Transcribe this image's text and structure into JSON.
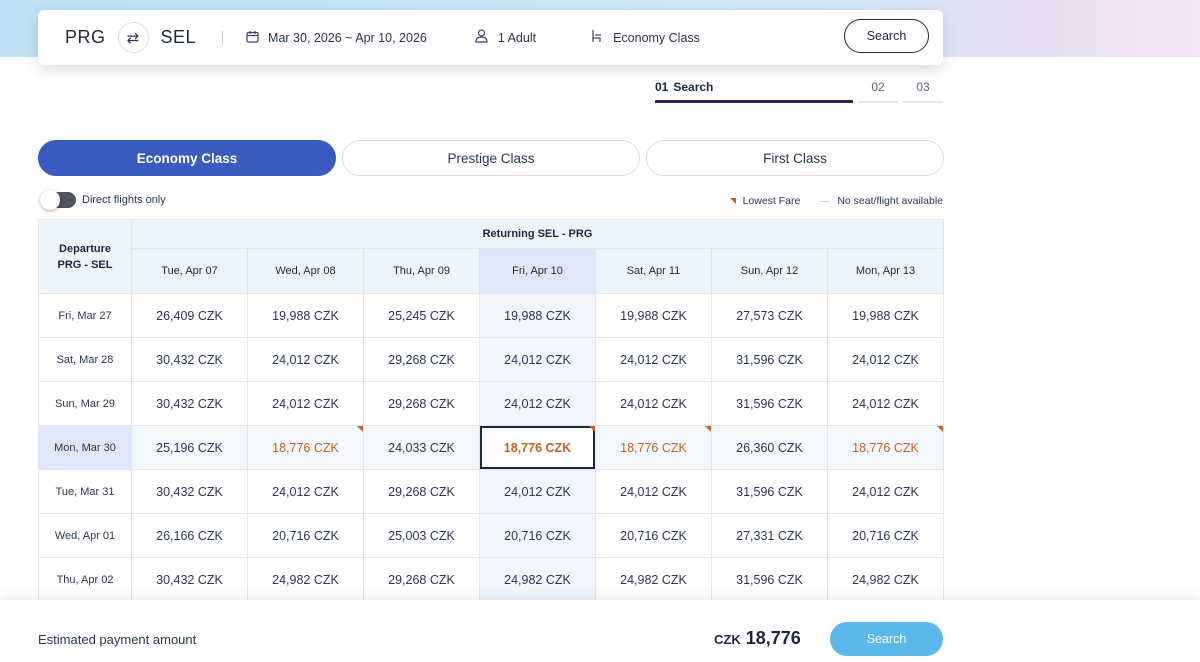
{
  "search_bar": {
    "origin": "PRG",
    "destination": "SEL",
    "dates": "Mar 30, 2026 ~ Apr 10, 2026",
    "passengers": "1 Adult",
    "cabin": "Economy Class",
    "search_label": "Search"
  },
  "icons": {
    "swap": "swap-icon",
    "calendar": "calendar-icon",
    "person": "person-icon",
    "seat": "seat-icon"
  },
  "steps": [
    {
      "num": "01",
      "label": "Search"
    },
    {
      "num": "02",
      "label": ""
    },
    {
      "num": "03",
      "label": ""
    }
  ],
  "class_tabs": [
    "Economy Class",
    "Prestige Class",
    "First Class"
  ],
  "direct_flights_label": "Direct flights only",
  "legend": {
    "lowest_fare": "Lowest Fare",
    "no_seat": "No seat/flight available"
  },
  "table": {
    "returning_header": "Returning SEL - PRG",
    "departure_header_line1": "Departure",
    "departure_header_line2": "PRG - SEL",
    "return_dates": [
      "Tue, Apr 07",
      "Wed, Apr 08",
      "Thu, Apr 09",
      "Fri, Apr 10",
      "Sat, Apr 11",
      "Sun, Apr 12",
      "Mon, Apr 13"
    ],
    "rows": [
      {
        "date": "Fri, Mar 27",
        "fares": [
          "26,409 CZK",
          "19,988 CZK",
          "25,245 CZK",
          "19,988 CZK",
          "19,988 CZK",
          "27,573 CZK",
          "19,988 CZK"
        ]
      },
      {
        "date": "Sat, Mar 28",
        "fares": [
          "30,432 CZK",
          "24,012 CZK",
          "29,268 CZK",
          "24,012 CZK",
          "24,012 CZK",
          "31,596 CZK",
          "24,012 CZK"
        ]
      },
      {
        "date": "Sun, Mar 29",
        "fares": [
          "30,432 CZK",
          "24,012 CZK",
          "29,268 CZK",
          "24,012 CZK",
          "24,012 CZK",
          "31,596 CZK",
          "24,012 CZK"
        ]
      },
      {
        "date": "Mon, Mar 30",
        "fares": [
          "25,196 CZK",
          "18,776 CZK",
          "24,033 CZK",
          "18,776 CZK",
          "18,776 CZK",
          "26,360 CZK",
          "18,776 CZK"
        ]
      },
      {
        "date": "Tue, Mar 31",
        "fares": [
          "30,432 CZK",
          "24,012 CZK",
          "29,268 CZK",
          "24,012 CZK",
          "24,012 CZK",
          "31,596 CZK",
          "24,012 CZK"
        ]
      },
      {
        "date": "Wed, Apr 01",
        "fares": [
          "26,166 CZK",
          "20,716 CZK",
          "25,003 CZK",
          "20,716 CZK",
          "20,716 CZK",
          "27,331 CZK",
          "20,716 CZK"
        ]
      },
      {
        "date": "Thu, Apr 02",
        "fares": [
          "30,432 CZK",
          "24,982 CZK",
          "29,268 CZK",
          "24,982 CZK",
          "24,982 CZK",
          "31,596 CZK",
          "24,982 CZK"
        ]
      }
    ],
    "selected_row": 3,
    "selected_col": 3,
    "lowest_cells": [
      [
        3,
        1
      ],
      [
        3,
        3
      ],
      [
        3,
        4
      ],
      [
        3,
        6
      ]
    ]
  },
  "bottom": {
    "estimated_label": "Estimated payment amount",
    "currency": "CZK",
    "amount": "18,776",
    "search_label": "Search"
  },
  "colors": {
    "accent": "#3a5bc0",
    "lowest": "#c8621e",
    "search_button": "#5cb7ea"
  }
}
